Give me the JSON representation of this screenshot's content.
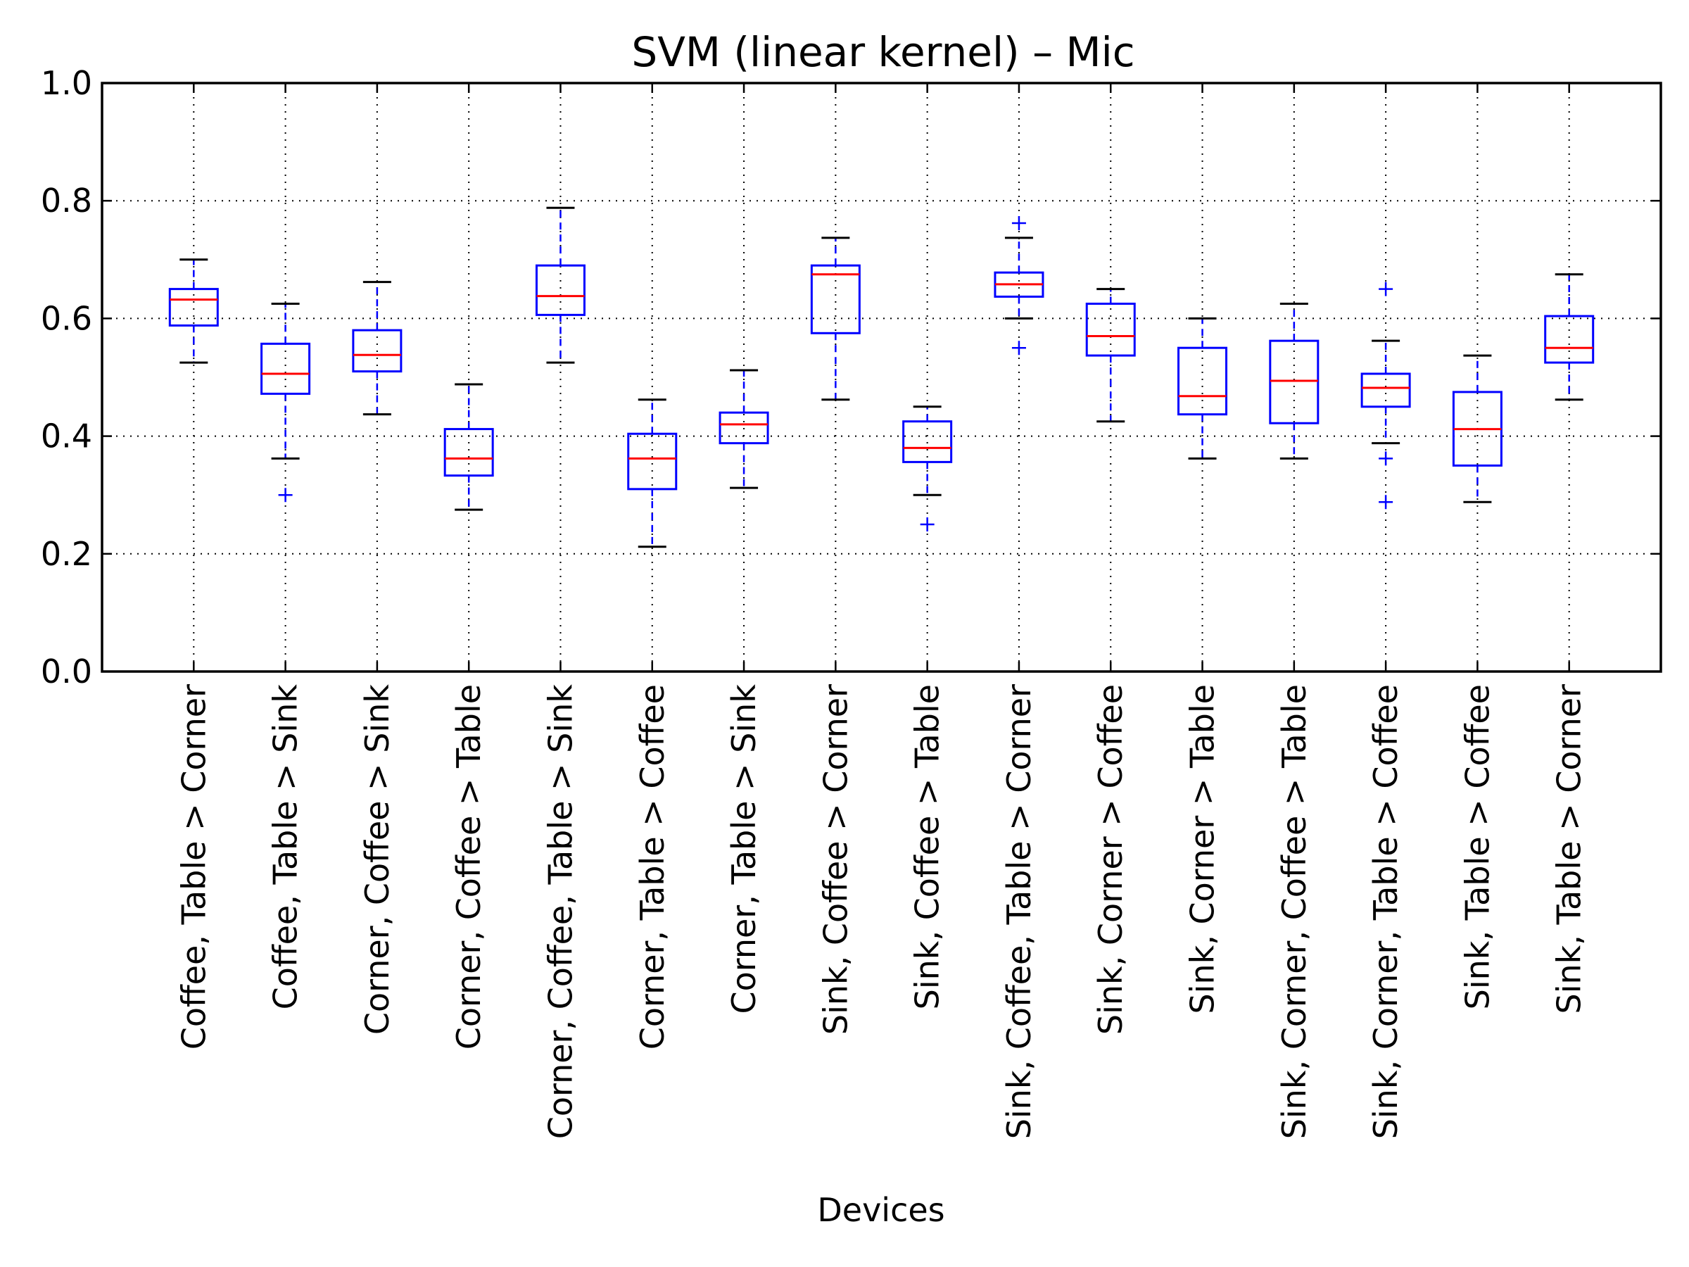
{
  "chart_data": {
    "type": "box",
    "title": "SVM (linear kernel) – Mic",
    "xlabel": "Devices",
    "ylabel": "",
    "ylim": [
      0.0,
      1.0
    ],
    "yticks": [
      "0.0",
      "0.2",
      "0.4",
      "0.6",
      "0.8",
      "1.0"
    ],
    "grid": true,
    "colors": {
      "box": "#0000ff",
      "median": "#ff0000",
      "whisker_cap": "#000000",
      "outlier": "#0000ff",
      "grid": "#000000"
    },
    "categories": [
      "Coffee, Table > Corner",
      "Coffee, Table > Sink",
      "Corner, Coffee > Sink",
      "Corner, Coffee > Table",
      "Corner, Coffee, Table > Sink",
      "Corner, Table > Coffee",
      "Corner, Table > Sink",
      "Sink, Coffee > Corner",
      "Sink, Coffee > Table",
      "Sink, Coffee, Table > Corner",
      "Sink, Corner > Coffee",
      "Sink, Corner > Table",
      "Sink, Corner, Coffee > Table",
      "Sink, Corner, Table > Coffee",
      "Sink, Table > Coffee",
      "Sink, Table > Corner"
    ],
    "boxes": [
      {
        "whislo": 0.525,
        "q1": 0.588,
        "median": 0.632,
        "q3": 0.65,
        "whishi": 0.7,
        "fliers": []
      },
      {
        "whislo": 0.362,
        "q1": 0.472,
        "median": 0.506,
        "q3": 0.557,
        "whishi": 0.625,
        "fliers": [
          0.3
        ]
      },
      {
        "whislo": 0.437,
        "q1": 0.51,
        "median": 0.538,
        "q3": 0.58,
        "whishi": 0.662,
        "fliers": []
      },
      {
        "whislo": 0.275,
        "q1": 0.333,
        "median": 0.362,
        "q3": 0.412,
        "whishi": 0.488,
        "fliers": []
      },
      {
        "whislo": 0.525,
        "q1": 0.606,
        "median": 0.638,
        "q3": 0.69,
        "whishi": 0.788,
        "fliers": []
      },
      {
        "whislo": 0.212,
        "q1": 0.31,
        "median": 0.362,
        "q3": 0.404,
        "whishi": 0.462,
        "fliers": []
      },
      {
        "whislo": 0.312,
        "q1": 0.388,
        "median": 0.42,
        "q3": 0.44,
        "whishi": 0.512,
        "fliers": []
      },
      {
        "whislo": 0.462,
        "q1": 0.575,
        "median": 0.675,
        "q3": 0.69,
        "whishi": 0.737,
        "fliers": []
      },
      {
        "whislo": 0.3,
        "q1": 0.356,
        "median": 0.38,
        "q3": 0.425,
        "whishi": 0.45,
        "fliers": [
          0.25
        ]
      },
      {
        "whislo": 0.6,
        "q1": 0.637,
        "median": 0.658,
        "q3": 0.678,
        "whishi": 0.737,
        "fliers": [
          0.55,
          0.762
        ]
      },
      {
        "whislo": 0.425,
        "q1": 0.537,
        "median": 0.57,
        "q3": 0.625,
        "whishi": 0.65,
        "fliers": []
      },
      {
        "whislo": 0.362,
        "q1": 0.437,
        "median": 0.468,
        "q3": 0.55,
        "whishi": 0.6,
        "fliers": []
      },
      {
        "whislo": 0.362,
        "q1": 0.422,
        "median": 0.494,
        "q3": 0.562,
        "whishi": 0.625,
        "fliers": []
      },
      {
        "whislo": 0.388,
        "q1": 0.45,
        "median": 0.482,
        "q3": 0.506,
        "whishi": 0.562,
        "fliers": [
          0.65,
          0.362,
          0.288
        ]
      },
      {
        "whislo": 0.288,
        "q1": 0.35,
        "median": 0.412,
        "q3": 0.475,
        "whishi": 0.537,
        "fliers": []
      },
      {
        "whislo": 0.462,
        "q1": 0.525,
        "median": 0.55,
        "q3": 0.604,
        "whishi": 0.675,
        "fliers": []
      }
    ]
  }
}
